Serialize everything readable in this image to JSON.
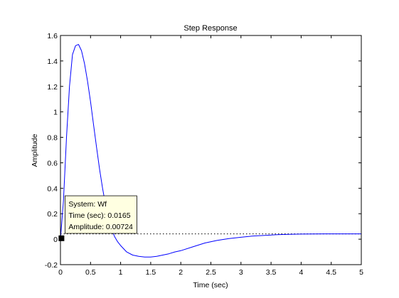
{
  "chart_data": {
    "type": "line",
    "title": "Step Response",
    "xlabel": "Time (sec)",
    "ylabel": "Amplitude",
    "xlim": [
      0,
      5
    ],
    "ylim": [
      -0.2,
      1.6
    ],
    "x_ticks": [
      {
        "value": 0,
        "label": "0"
      },
      {
        "value": 0.5,
        "label": "0.5"
      },
      {
        "value": 1,
        "label": "1"
      },
      {
        "value": 1.5,
        "label": "1.5"
      },
      {
        "value": 2,
        "label": "2"
      },
      {
        "value": 2.5,
        "label": "2.5"
      },
      {
        "value": 3,
        "label": "3"
      },
      {
        "value": 3.5,
        "label": "3.5"
      },
      {
        "value": 4,
        "label": "4"
      },
      {
        "value": 4.5,
        "label": "4.5"
      },
      {
        "value": 5,
        "label": "5"
      }
    ],
    "y_ticks": [
      {
        "value": -0.2,
        "label": "-0.2"
      },
      {
        "value": 0,
        "label": "0"
      },
      {
        "value": 0.2,
        "label": "0.2"
      },
      {
        "value": 0.4,
        "label": "0.4"
      },
      {
        "value": 0.6,
        "label": "0.6"
      },
      {
        "value": 0.8,
        "label": "0.8"
      },
      {
        "value": 1,
        "label": "1"
      },
      {
        "value": 1.2,
        "label": "1.2"
      },
      {
        "value": 1.4,
        "label": "1.4"
      },
      {
        "value": 1.6,
        "label": "1.6"
      }
    ],
    "grid": false,
    "series": [
      {
        "color": "#0000ff",
        "x": [
          0,
          0.05,
          0.1,
          0.15,
          0.2,
          0.25,
          0.3,
          0.35,
          0.4,
          0.45,
          0.5,
          0.55,
          0.6,
          0.65,
          0.7,
          0.75,
          0.8,
          0.85,
          0.9,
          0.95,
          1.0,
          1.1,
          1.2,
          1.3,
          1.4,
          1.5,
          1.6,
          1.7,
          1.8,
          1.9,
          2.0,
          2.2,
          2.4,
          2.6,
          2.8,
          3.0,
          3.2,
          3.4,
          3.6,
          3.8,
          4.0,
          4.2,
          4.4,
          4.6,
          4.8,
          5.0
        ],
        "y": [
          0,
          0.3,
          0.8,
          1.2,
          1.45,
          1.52,
          1.53,
          1.48,
          1.38,
          1.24,
          1.08,
          0.9,
          0.72,
          0.55,
          0.4,
          0.27,
          0.16,
          0.08,
          0.02,
          -0.02,
          -0.05,
          -0.1,
          -0.125,
          -0.135,
          -0.14,
          -0.14,
          -0.135,
          -0.125,
          -0.115,
          -0.1,
          -0.09,
          -0.06,
          -0.03,
          -0.01,
          0.005,
          0.015,
          0.025,
          0.03,
          0.035,
          0.038,
          0.04,
          0.041,
          0.042,
          0.042,
          0.042,
          0.042
        ]
      }
    ],
    "reference_line": {
      "y": 0.042,
      "style": "dotted",
      "color": "#000000"
    },
    "datatip": {
      "x": 0.0165,
      "y": 0.00724,
      "lines": [
        "System: Wf",
        "Time (sec): 0.0165",
        "Amplitude: 0.00724"
      ],
      "background": "#ffffe1"
    }
  }
}
